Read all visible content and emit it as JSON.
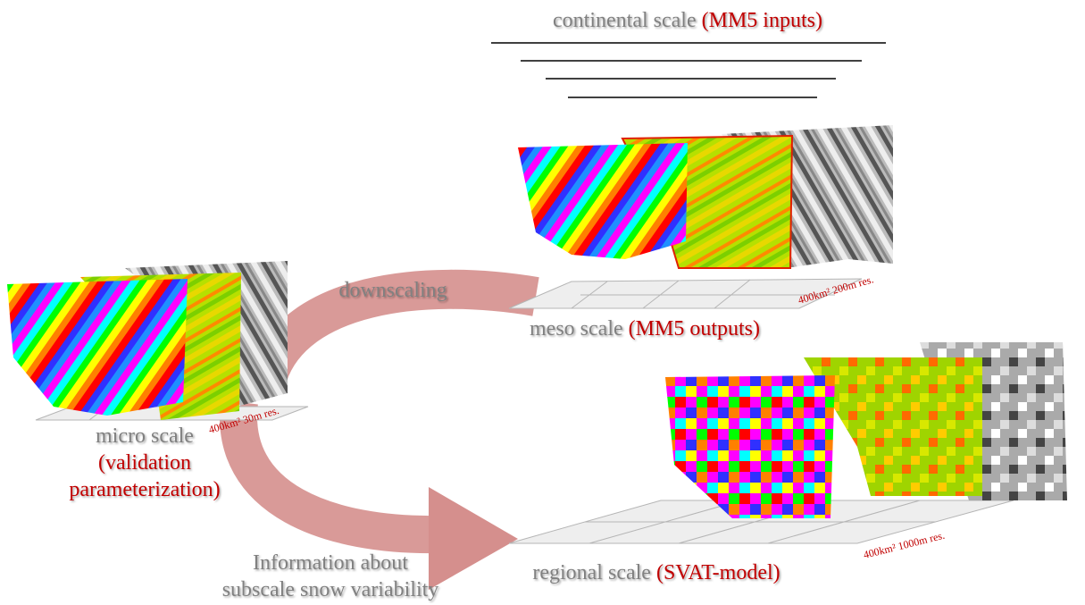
{
  "continental": {
    "label": "continental scale",
    "model": "(MM5 inputs)"
  },
  "meso": {
    "label": "meso scale",
    "model": "(MM5 outputs)",
    "resolution": "400km² 200m res."
  },
  "micro": {
    "label": "micro scale",
    "model_lines": [
      "(validation",
      "parameterization)"
    ],
    "resolution": "400km² 30m res."
  },
  "regional": {
    "label": "regional scale",
    "model": "(SVAT-model)",
    "resolution": "400km² 1000m res."
  },
  "arrows": {
    "downscaling": "downscaling",
    "information": [
      "Information about",
      "subscale snow variability"
    ]
  }
}
